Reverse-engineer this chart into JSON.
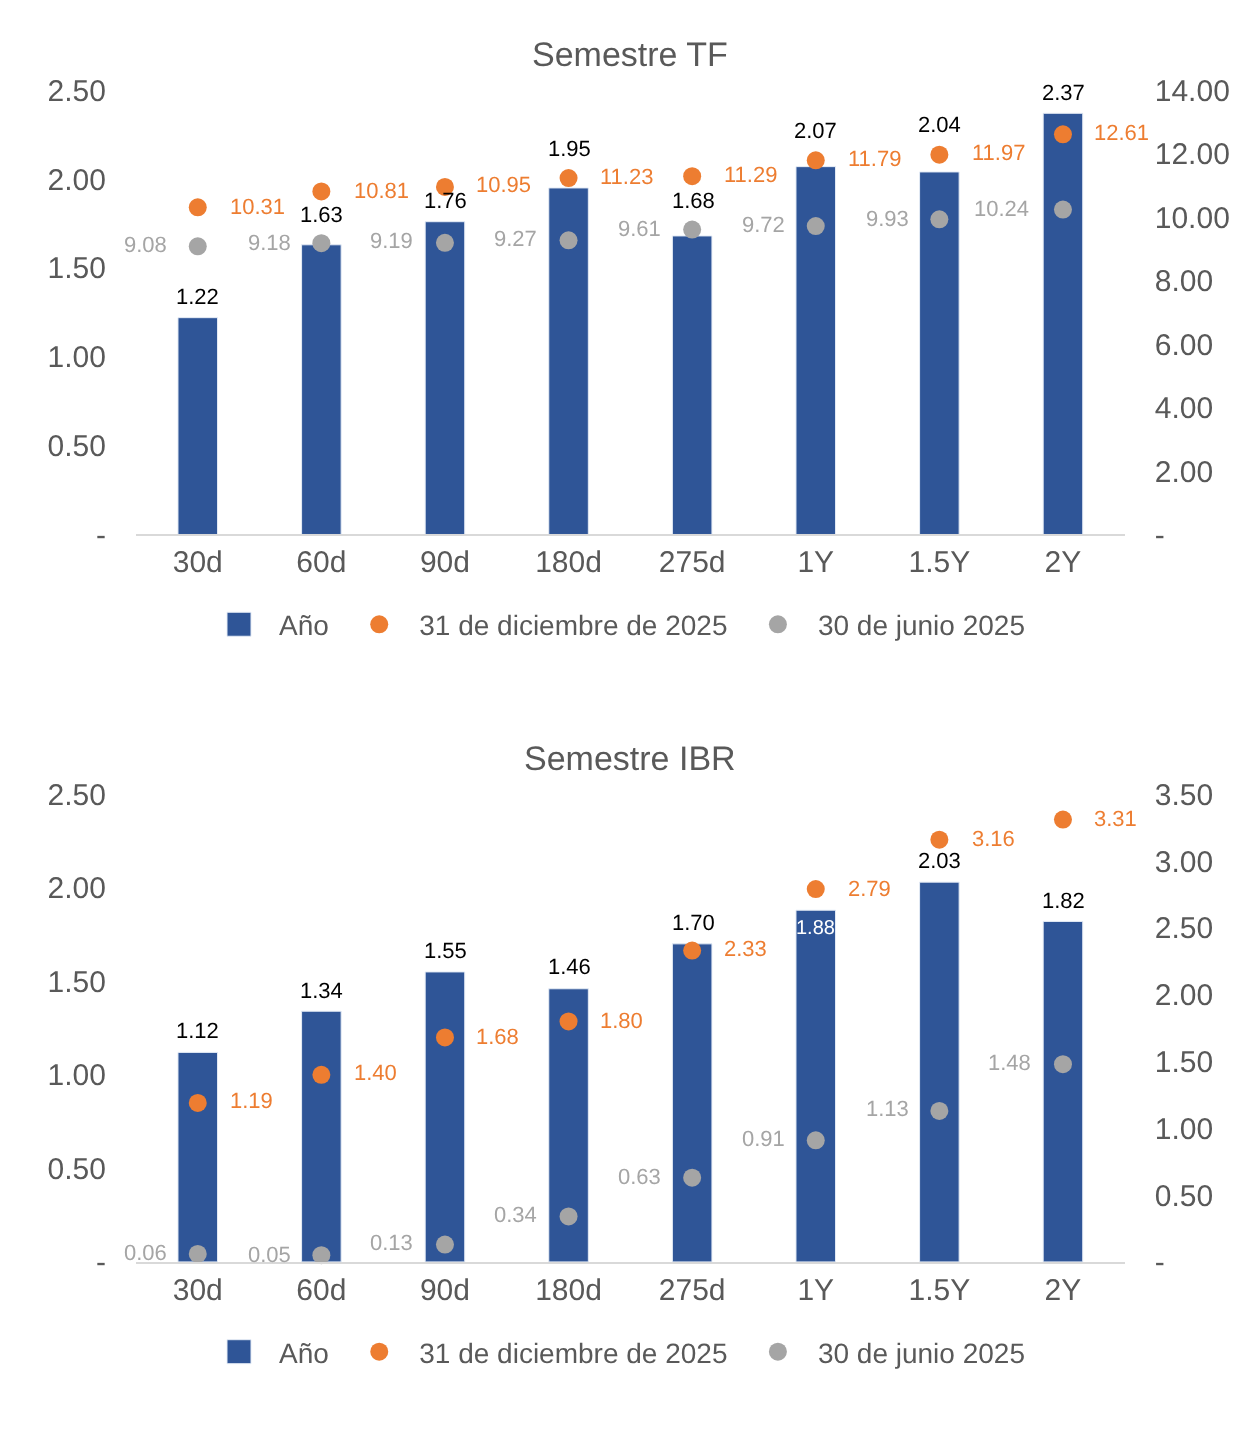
{
  "chart_data": [
    {
      "type": "bar",
      "title": "Semestre TF",
      "categories": [
        "30d",
        "60d",
        "90d",
        "180d",
        "275d",
        "1Y",
        "1.5Y",
        "2Y"
      ],
      "series": [
        {
          "name": "Año",
          "color": "#2f5597",
          "values": [
            1.22,
            1.63,
            1.76,
            1.95,
            1.68,
            2.07,
            2.04,
            2.37
          ],
          "value_labels": [
            "1.22",
            "1.63",
            "1.76",
            "1.95",
            "1.68",
            "2.07",
            "2.04",
            "2.37"
          ]
        },
        {
          "name": "31 de diciembre de 2025",
          "type": "scatter",
          "axis": "y2",
          "color": "#ed7d31",
          "values": [
            10.31,
            10.81,
            10.95,
            11.23,
            11.29,
            11.79,
            11.97,
            12.61
          ],
          "value_labels": [
            "10.31",
            "10.81",
            "10.95",
            "11.23",
            "11.29",
            "11.79",
            "11.97",
            "12.61"
          ]
        },
        {
          "name": "30 de junio 2025",
          "type": "scatter",
          "axis": "y2",
          "color": "#a5a5a5",
          "values": [
            9.08,
            9.18,
            9.19,
            9.27,
            9.61,
            9.72,
            9.93,
            10.24
          ],
          "value_labels": [
            "9.08",
            "9.18",
            "9.19",
            "9.27",
            "9.61",
            "9.72",
            "9.93",
            "10.24"
          ]
        }
      ],
      "ylim": [
        0,
        2.5
      ],
      "yticks": [
        {
          "value": 0,
          "label": "-"
        },
        {
          "value": 0.5,
          "label": "0.50"
        },
        {
          "value": 1,
          "label": "1.00"
        },
        {
          "value": 1.5,
          "label": "1.50"
        },
        {
          "value": 2,
          "label": "2.00"
        },
        {
          "value": 2.5,
          "label": "2.50"
        }
      ],
      "y2lim": [
        0,
        14
      ],
      "y2ticks": [
        {
          "value": 0,
          "label": "-"
        },
        {
          "value": 2,
          "label": "2.00"
        },
        {
          "value": 4,
          "label": "4.00"
        },
        {
          "value": 6,
          "label": "6.00"
        },
        {
          "value": 8,
          "label": "8.00"
        },
        {
          "value": 10,
          "label": "10.00"
        },
        {
          "value": 12,
          "label": "12.00"
        },
        {
          "value": 14,
          "label": "14.00"
        }
      ],
      "legend": "bottom",
      "marker": "circle"
    },
    {
      "type": "bar",
      "title": "Semestre IBR",
      "categories": [
        "30d",
        "60d",
        "90d",
        "180d",
        "275d",
        "1Y",
        "1.5Y",
        "2Y"
      ],
      "series": [
        {
          "name": "Año",
          "color": "#2f5597",
          "values": [
            1.12,
            1.34,
            1.55,
            1.46,
            1.7,
            1.88,
            2.03,
            1.82
          ],
          "value_labels": [
            "1.12",
            "1.34",
            "1.55",
            "1.46",
            "1.70",
            "1.88",
            "2.03",
            "1.82"
          ]
        },
        {
          "name": "31 de diciembre de 2025",
          "type": "scatter",
          "axis": "y2",
          "color": "#ed7d31",
          "values": [
            1.19,
            1.4,
            1.68,
            1.8,
            2.33,
            2.79,
            3.16,
            3.31
          ],
          "value_labels": [
            "1.19",
            "1.40",
            "1.68",
            "1.80",
            "2.33",
            "2.79",
            "3.16",
            "3.31"
          ]
        },
        {
          "name": "30 de junio 2025",
          "type": "scatter",
          "axis": "y2",
          "color": "#a5a5a5",
          "values": [
            0.06,
            0.05,
            0.13,
            0.34,
            0.63,
            0.91,
            1.13,
            1.48
          ],
          "value_labels": [
            "0.06",
            "0.05",
            "0.13",
            "0.34",
            "0.63",
            "0.91",
            "1.13",
            "1.48"
          ]
        }
      ],
      "ylim": [
        0,
        2.5
      ],
      "yticks": [
        {
          "value": 0,
          "label": "-"
        },
        {
          "value": 0.5,
          "label": "0.50"
        },
        {
          "value": 1,
          "label": "1.00"
        },
        {
          "value": 1.5,
          "label": "1.50"
        },
        {
          "value": 2,
          "label": "2.00"
        },
        {
          "value": 2.5,
          "label": "2.50"
        }
      ],
      "y2lim": [
        0,
        3.5
      ],
      "y2ticks": [
        {
          "value": 0,
          "label": "-"
        },
        {
          "value": 0.5,
          "label": "0.50"
        },
        {
          "value": 1,
          "label": "1.00"
        },
        {
          "value": 1.5,
          "label": "1.50"
        },
        {
          "value": 2,
          "label": "2.00"
        },
        {
          "value": 2.5,
          "label": "2.50"
        },
        {
          "value": 3,
          "label": "3.00"
        },
        {
          "value": 3.5,
          "label": "3.50"
        }
      ],
      "legend": "bottom",
      "marker": "circle"
    }
  ]
}
